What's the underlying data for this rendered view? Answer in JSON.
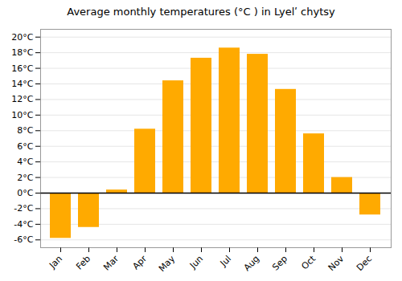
{
  "chart_data": {
    "type": "bar",
    "title": "Average monthly temperatures (°C ) in Lyelʹ chytsy",
    "categories": [
      "Jan",
      "Feb",
      "Mar",
      "Apr",
      "May",
      "Jun",
      "Jul",
      "Aug",
      "Sep",
      "Oct",
      "Nov",
      "Dec"
    ],
    "values": [
      -5.8,
      -4.4,
      0.4,
      8.2,
      14.4,
      17.3,
      18.6,
      17.8,
      13.3,
      7.6,
      2.0,
      -2.8
    ],
    "color": "#FFAA00",
    "ylim": [
      -7,
      21
    ],
    "yticks": [
      {
        "value": -6,
        "label": "-6°C"
      },
      {
        "value": -4,
        "label": "-4°C"
      },
      {
        "value": -2,
        "label": "-2°C"
      },
      {
        "value": 0,
        "label": "0°C"
      },
      {
        "value": 2,
        "label": "2°C"
      },
      {
        "value": 4,
        "label": "4°C"
      },
      {
        "value": 6,
        "label": "6°C"
      },
      {
        "value": 8,
        "label": "8°C"
      },
      {
        "value": 10,
        "label": "10°C"
      },
      {
        "value": 12,
        "label": "12°C"
      },
      {
        "value": 14,
        "label": "14°C"
      },
      {
        "value": 16,
        "label": "16°C"
      },
      {
        "value": 18,
        "label": "18°C"
      },
      {
        "value": 20,
        "label": "20°C"
      }
    ],
    "grid": true
  }
}
